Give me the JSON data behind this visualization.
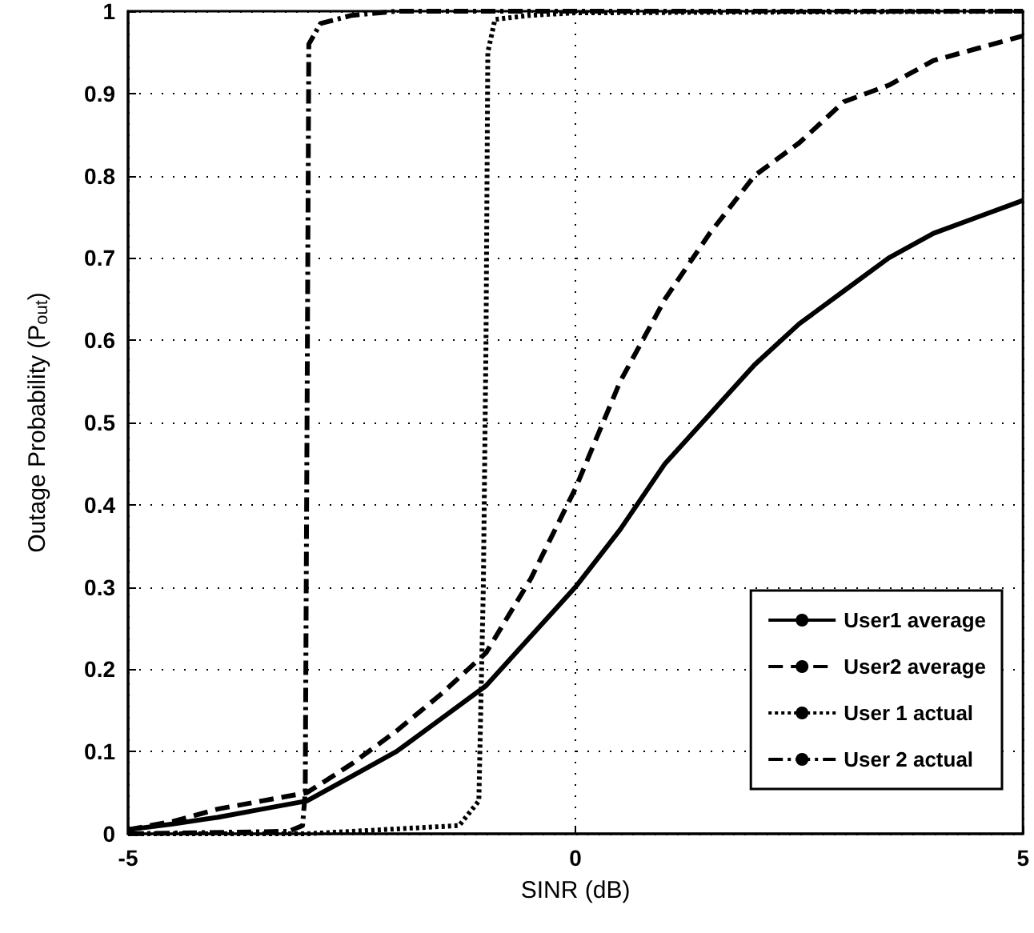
{
  "chart_data": {
    "type": "line",
    "xlabel": "SINR (dB)",
    "ylabel": "Outage Probability (P$_{out}$)",
    "xlim": [
      -5,
      5
    ],
    "ylim": [
      0,
      1
    ],
    "xticks": [
      -5,
      0,
      5
    ],
    "yticks": [
      0,
      0.1,
      0.2,
      0.3,
      0.4,
      0.5,
      0.6,
      0.7,
      0.8,
      0.9,
      1
    ],
    "grid": true,
    "legend": "bottom right",
    "marker": "none",
    "series": [
      {
        "name": "User1 average",
        "color": "#000000",
        "line_style": "solid",
        "x": [
          -5,
          -4.5,
          -4,
          -3.5,
          -3,
          -2.5,
          -2,
          -1.5,
          -1,
          -0.5,
          0,
          0.5,
          1,
          1.5,
          2,
          2.5,
          3,
          3.5,
          4,
          4.5,
          5
        ],
        "values": [
          0.005,
          0.012,
          0.02,
          0.03,
          0.04,
          0.07,
          0.1,
          0.14,
          0.18,
          0.24,
          0.3,
          0.37,
          0.45,
          0.51,
          0.57,
          0.62,
          0.66,
          0.7,
          0.73,
          0.75,
          0.77
        ]
      },
      {
        "name": "User2 average",
        "color": "#000000",
        "line_style": "dashed",
        "x": [
          -5,
          -4.5,
          -4,
          -3.5,
          -3,
          -2.5,
          -2,
          -1.5,
          -1,
          -0.5,
          0,
          0.5,
          1,
          1.5,
          2,
          2.5,
          3,
          3.5,
          4,
          4.5,
          5
        ],
        "values": [
          0.005,
          0.015,
          0.03,
          0.04,
          0.05,
          0.085,
          0.125,
          0.17,
          0.22,
          0.31,
          0.42,
          0.55,
          0.65,
          0.73,
          0.8,
          0.84,
          0.89,
          0.91,
          0.94,
          0.955,
          0.97
        ]
      },
      {
        "name": "User 1 actual",
        "color": "#000000",
        "line_style": "dotted",
        "x": [
          -5,
          -3,
          -1.3,
          -1.08,
          -1.03,
          -1,
          -0.98,
          -0.9,
          -0.5,
          0,
          5
        ],
        "values": [
          0,
          0,
          0.01,
          0.04,
          0.3,
          0.6,
          0.95,
          0.99,
          0.995,
          0.998,
          1
        ]
      },
      {
        "name": "User 2 actual",
        "color": "#000000",
        "line_style": "dashdot",
        "x": [
          -5,
          -3.2,
          -3.05,
          -3.02,
          -3,
          -2.98,
          -2.85,
          -2.5,
          -2,
          5
        ],
        "values": [
          0,
          0.003,
          0.01,
          0.05,
          0.5,
          0.96,
          0.985,
          0.995,
          1,
          1
        ]
      }
    ]
  }
}
